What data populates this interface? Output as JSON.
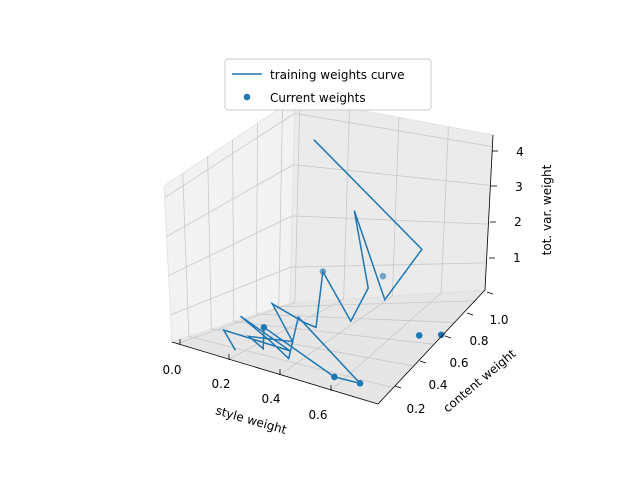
{
  "chart_data": {
    "type": "line3d",
    "xlabel": "style weight",
    "ylabel": "content weight",
    "zlabel": "tot. var. weight",
    "xlim": [
      -0.02,
      0.78
    ],
    "ylim": [
      0.05,
      1.1
    ],
    "zlim": [
      0.3,
      4.3
    ],
    "x_ticks": [
      "0.0",
      "0.2",
      "0.4",
      "0.6"
    ],
    "y_ticks": [
      "0.2",
      "0.4",
      "0.6",
      "0.8",
      "1.0"
    ],
    "z_ticks": [
      "1",
      "2",
      "3",
      "4"
    ],
    "x_tick_values": [
      0.0,
      0.2,
      0.4,
      0.6
    ],
    "y_tick_values": [
      0.2,
      0.4,
      0.6,
      0.8,
      1.0
    ],
    "z_tick_values": [
      1,
      2,
      3,
      4
    ],
    "grid": true,
    "legend_position": "top-center",
    "series": [
      {
        "name": "training weights curve",
        "kind": "line",
        "color": "#1f77b4",
        "points": [
          [
            0.15,
            0.9,
            4.7
          ],
          [
            0.6,
            0.9,
            1.9
          ],
          [
            0.53,
            0.72,
            1.0
          ],
          [
            0.3,
            0.95,
            2.8
          ],
          [
            0.52,
            0.58,
            1.6
          ],
          [
            0.52,
            0.42,
            1.1
          ],
          [
            0.3,
            0.67,
            1.7
          ],
          [
            0.35,
            0.5,
            0.6
          ],
          [
            0.32,
            0.45,
            0.8
          ],
          [
            0.14,
            0.58,
            0.9
          ],
          [
            0.28,
            0.45,
            0.25
          ],
          [
            0.12,
            0.42,
            0.25
          ],
          [
            0.22,
            0.32,
            0.2
          ],
          [
            0.25,
            0.25,
            0.9
          ],
          [
            0.55,
            0.2,
            0.2
          ],
          [
            0.65,
            0.2,
            0.2
          ],
          [
            0.3,
            0.45,
            0.9
          ],
          [
            0.35,
            0.25,
            0.25
          ],
          [
            0.2,
            0.42,
            0.25
          ],
          [
            0.05,
            0.5,
            0.6
          ],
          [
            0.25,
            0.5,
            -0.1
          ],
          [
            0.02,
            0.42,
            0.3
          ],
          [
            0.12,
            0.3,
            0.05
          ]
        ]
      },
      {
        "name": "Current weights",
        "kind": "scatter",
        "color": "#1f77b4",
        "points": [
          [
            0.52,
            0.72,
            1.6
          ],
          [
            0.3,
            0.67,
            1.7
          ],
          [
            0.25,
            0.25,
            0.9
          ],
          [
            0.55,
            0.2,
            0.2
          ],
          [
            0.65,
            0.2,
            0.2
          ],
          [
            0.68,
            0.7,
            0.2
          ],
          [
            0.76,
            0.72,
            0.2
          ]
        ]
      }
    ]
  }
}
